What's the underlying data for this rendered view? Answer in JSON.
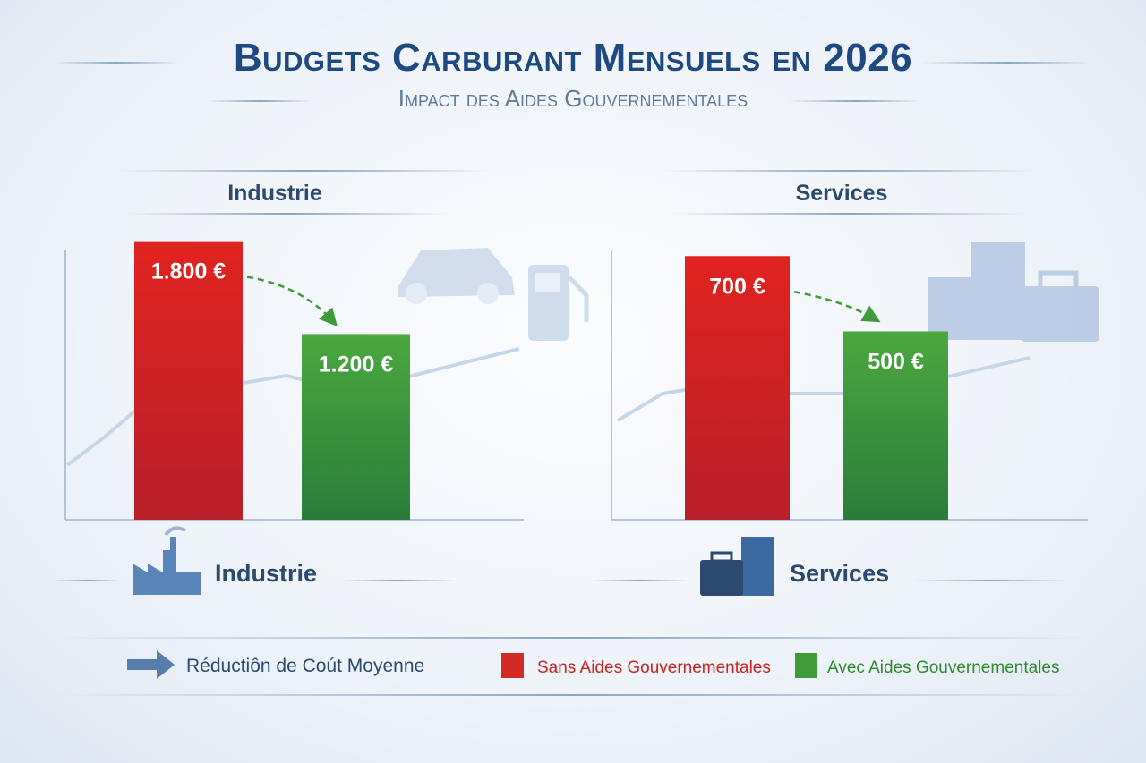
{
  "title": "Budgets Carburant Mensuels en 2026",
  "subtitle": "Impact des Aides Gouvernementales",
  "colors": {
    "sans": "#d42a24",
    "avec": "#3f9a3a",
    "title": "#1f4a80"
  },
  "legend": {
    "arrow": "Réductiôn de Coút Moyenne",
    "sans": "Sans Aides Gouvernementales",
    "avec": "Avec Aides Gouvernementales"
  },
  "chart_data": [
    {
      "type": "bar",
      "title": "Industrie",
      "category_label": "Industrie",
      "icon": "factory-icon",
      "categories": [
        "Sans Aides Gouvernementales",
        "Avec Aides Gouvernementales"
      ],
      "values": [
        1800,
        1200
      ],
      "labels": [
        "1.800 €",
        "1.200 €"
      ],
      "unit": "€",
      "ylim": [
        0,
        1850
      ]
    },
    {
      "type": "bar",
      "title": "Services",
      "category_label": "Services",
      "icon": "office-building-icon",
      "categories": [
        "Sans Aides Gouvernementales",
        "Avec Aides Gouvernementales"
      ],
      "values": [
        700,
        500
      ],
      "labels": [
        "700 €",
        "500 €"
      ],
      "unit": "€",
      "ylim": [
        0,
        760
      ]
    }
  ]
}
